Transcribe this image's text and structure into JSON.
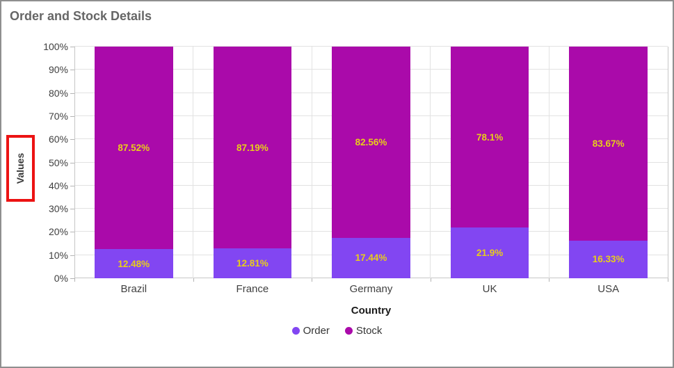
{
  "chart_data": {
    "type": "bar",
    "subtype": "stacked-column-100",
    "title": "Order and Stock Details",
    "xlabel": "Country",
    "ylabel": "Values",
    "categories": [
      "Brazil",
      "France",
      "Germany",
      "UK",
      "USA"
    ],
    "series": [
      {
        "name": "Order",
        "color": "#8246f2",
        "values": [
          12.48,
          12.81,
          17.44,
          21.9,
          16.33
        ],
        "labels": [
          "12.48%",
          "12.81%",
          "17.44%",
          "21.9%",
          "16.33%"
        ]
      },
      {
        "name": "Stock",
        "color": "#aa0aaa",
        "values": [
          87.52,
          87.19,
          82.56,
          78.1,
          83.67
        ],
        "labels": [
          "87.52%",
          "87.19%",
          "82.56%",
          "78.1%",
          "83.67%"
        ]
      }
    ],
    "ylim": [
      0,
      100
    ],
    "ytick_step": 10,
    "ytick_labels": [
      "0%",
      "10%",
      "20%",
      "30%",
      "40%",
      "50%",
      "60%",
      "70%",
      "80%",
      "90%",
      "100%"
    ],
    "grid": true,
    "legend_position": "bottom",
    "data_label_color": "#e8cd1b",
    "annotation": {
      "target": "y-axis-title",
      "shape": "rectangle",
      "color": "#ec1313"
    }
  }
}
